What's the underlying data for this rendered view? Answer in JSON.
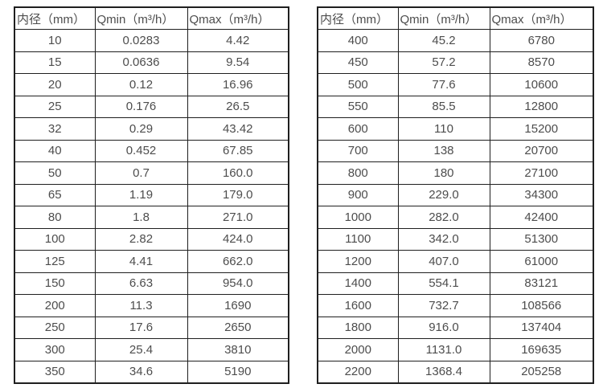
{
  "page": {
    "background_color": "#ffffff",
    "border_color": "#1f1f1f",
    "text_color": "#4d4d4d"
  },
  "tables": [
    {
      "name": "flow-spec-table-small-diameters",
      "headers": [
        "内径（mm）",
        "Qmin（m³/h）",
        "Qmax（m³/h）"
      ],
      "rows": [
        [
          "10",
          "0.0283",
          "4.42"
        ],
        [
          "15",
          "0.0636",
          "9.54"
        ],
        [
          "20",
          "0.12",
          "16.96"
        ],
        [
          "25",
          "0.176",
          "26.5"
        ],
        [
          "32",
          "0.29",
          "43.42"
        ],
        [
          "40",
          "0.452",
          "67.85"
        ],
        [
          "50",
          "0.7",
          "160.0"
        ],
        [
          "65",
          "1.19",
          "179.0"
        ],
        [
          "80",
          "1.8",
          "271.0"
        ],
        [
          "100",
          "2.82",
          "424.0"
        ],
        [
          "125",
          "4.41",
          "662.0"
        ],
        [
          "150",
          "6.63",
          "954.0"
        ],
        [
          "200",
          "11.3",
          "1690"
        ],
        [
          "250",
          "17.6",
          "2650"
        ],
        [
          "300",
          "25.4",
          "3810"
        ],
        [
          "350",
          "34.6",
          "5190"
        ]
      ]
    },
    {
      "name": "flow-spec-table-large-diameters",
      "headers": [
        "内径（mm）",
        "Qmin（m³/h）",
        "Qmax（m³/h）"
      ],
      "rows": [
        [
          "400",
          "45.2",
          "6780"
        ],
        [
          "450",
          "57.2",
          "8570"
        ],
        [
          "500",
          "77.6",
          "10600"
        ],
        [
          "550",
          "85.5",
          "12800"
        ],
        [
          "600",
          "110",
          "15200"
        ],
        [
          "700",
          "138",
          "20700"
        ],
        [
          "800",
          "180",
          "27100"
        ],
        [
          "900",
          "229.0",
          "34300"
        ],
        [
          "1000",
          "282.0",
          "42400"
        ],
        [
          "1100",
          "342.0",
          "51300"
        ],
        [
          "1200",
          "407.0",
          "61000"
        ],
        [
          "1400",
          "554.1",
          "83121"
        ],
        [
          "1600",
          "732.7",
          "108566"
        ],
        [
          "1800",
          "916.0",
          "137404"
        ],
        [
          "2000",
          "1131.0",
          "169635"
        ],
        [
          "2200",
          "1368.4",
          "205258"
        ]
      ]
    }
  ]
}
